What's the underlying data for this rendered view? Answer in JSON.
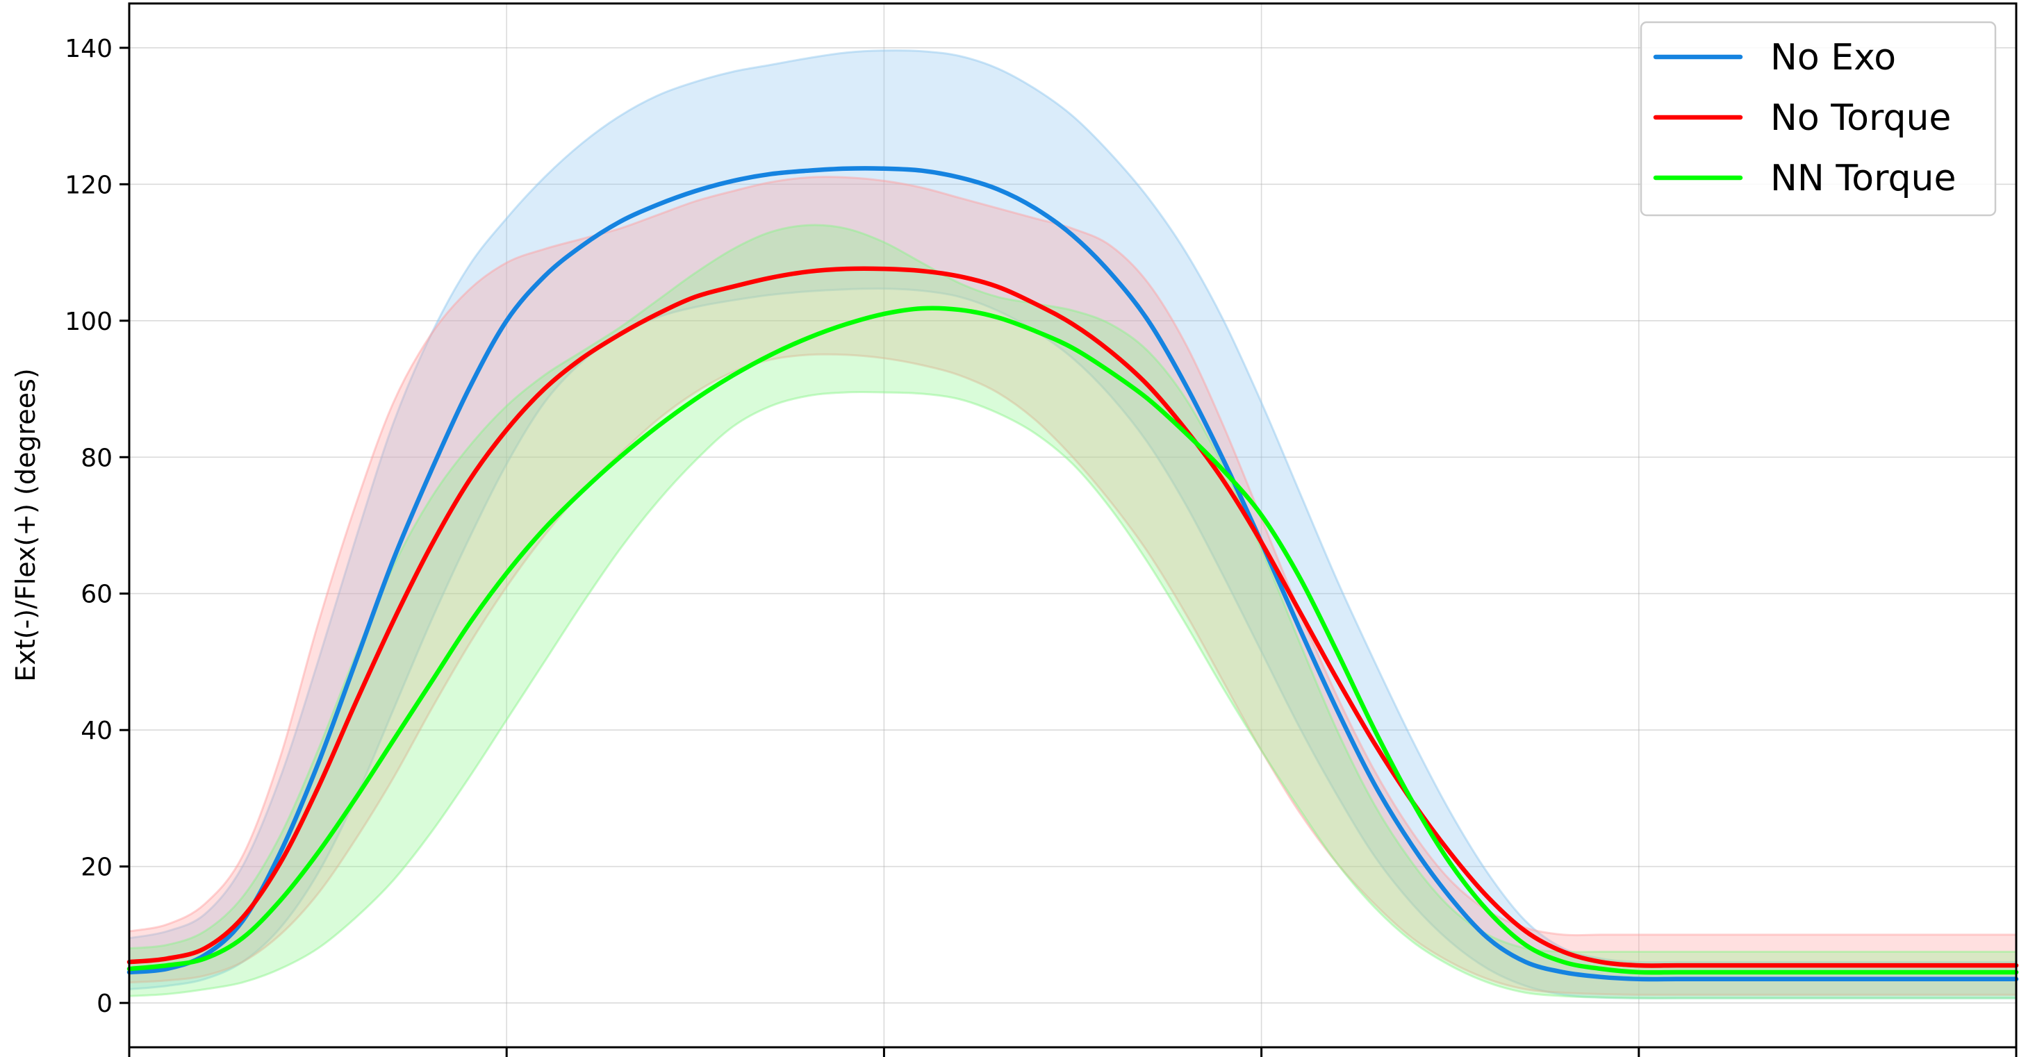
{
  "chart_data": {
    "type": "line",
    "title": "",
    "xlabel": "",
    "ylabel": "Ext(-)/Flex(+) (degrees)",
    "xlim": [
      0,
      100
    ],
    "ylim": [
      -6.5,
      146.5
    ],
    "yticks": [
      0,
      20,
      40,
      60,
      80,
      100,
      120,
      140
    ],
    "xticks": [
      0,
      20,
      40,
      60,
      80,
      100
    ],
    "grid": true,
    "legend_position": "top-right",
    "x": [
      0,
      2,
      4,
      6,
      8,
      10,
      12,
      14,
      16,
      18,
      20,
      22,
      24,
      26,
      28,
      30,
      32,
      34,
      36,
      38,
      40,
      42,
      44,
      46,
      48,
      50,
      52,
      54,
      56,
      58,
      60,
      62,
      64,
      66,
      68,
      70,
      72,
      74,
      76,
      78,
      80,
      82,
      84,
      86,
      88,
      90,
      92,
      94,
      96,
      98,
      100
    ],
    "series": [
      {
        "name": "No Exo",
        "color": "#1583e0",
        "band_color": "#8cc5ee",
        "mean": [
          4.5,
          5.0,
          7.0,
          12.0,
          22.0,
          35.0,
          50.0,
          65.0,
          78.0,
          90.0,
          100.0,
          106.5,
          111.0,
          114.5,
          117.0,
          119.0,
          120.5,
          121.5,
          122.0,
          122.3,
          122.3,
          122.0,
          121.0,
          119.3,
          116.5,
          112.5,
          107.0,
          100.0,
          90.5,
          79.5,
          67.5,
          55.0,
          43.0,
          32.0,
          23.0,
          15.5,
          9.5,
          6.0,
          4.5,
          3.8,
          3.5,
          3.5,
          3.5,
          3.5,
          3.5,
          3.5,
          3.5,
          3.5,
          3.5,
          3.5,
          3.5
        ],
        "upper": [
          9.5,
          10.5,
          13.0,
          20.0,
          33.0,
          50.0,
          68.0,
          85.0,
          98.0,
          108.0,
          115.0,
          121.0,
          126.0,
          130.0,
          133.0,
          135.0,
          136.5,
          137.5,
          138.5,
          139.3,
          139.6,
          139.5,
          138.8,
          137.0,
          134.0,
          130.0,
          124.5,
          118.0,
          110.0,
          100.0,
          88.0,
          75.0,
          62.0,
          50.0,
          38.5,
          28.0,
          19.0,
          12.0,
          8.0,
          6.5,
          6.0,
          6.0,
          6.0,
          6.0,
          6.0,
          6.0,
          6.0,
          6.0,
          6.0,
          6.0,
          6.0
        ],
        "lower": [
          2.0,
          2.5,
          3.5,
          6.0,
          11.0,
          19.0,
          30.0,
          43.0,
          56.0,
          68.0,
          79.0,
          88.0,
          94.0,
          98.0,
          100.5,
          102.0,
          103.0,
          103.8,
          104.3,
          104.6,
          104.7,
          104.4,
          103.5,
          101.5,
          98.5,
          94.5,
          89.0,
          82.0,
          73.0,
          62.5,
          51.5,
          40.5,
          30.5,
          21.5,
          14.5,
          9.0,
          5.0,
          2.5,
          1.2,
          0.8,
          0.7,
          0.7,
          0.7,
          0.7,
          0.7,
          0.7,
          0.7,
          0.7,
          0.7,
          0.7,
          0.7
        ]
      },
      {
        "name": "No Torque",
        "color": "#ff0000",
        "band_color": "#ff9e9e",
        "mean": [
          6.0,
          6.5,
          8.0,
          12.5,
          20.5,
          31.5,
          44.0,
          56.0,
          67.0,
          76.5,
          84.0,
          90.0,
          94.5,
          98.0,
          101.0,
          103.5,
          105.0,
          106.3,
          107.2,
          107.6,
          107.6,
          107.3,
          106.5,
          105.0,
          102.5,
          99.5,
          95.5,
          90.5,
          84.0,
          76.5,
          67.5,
          57.5,
          47.5,
          38.0,
          29.5,
          22.0,
          15.5,
          10.5,
          7.5,
          6.0,
          5.5,
          5.5,
          5.5,
          5.5,
          5.5,
          5.5,
          5.5,
          5.5,
          5.5,
          5.5,
          5.5
        ],
        "upper": [
          10.5,
          11.5,
          14.5,
          21.5,
          36.0,
          55.5,
          73.0,
          88.0,
          98.0,
          104.5,
          108.5,
          110.5,
          112.0,
          113.5,
          115.5,
          117.5,
          119.0,
          120.3,
          121.0,
          121.0,
          120.5,
          119.5,
          118.0,
          116.5,
          115.0,
          113.5,
          111.0,
          105.5,
          96.5,
          84.5,
          71.0,
          57.5,
          45.0,
          34.0,
          25.0,
          18.0,
          13.5,
          11.0,
          10.0,
          10.0,
          10.0,
          10.0,
          10.0,
          10.0,
          10.0,
          10.0,
          10.0,
          10.0,
          10.0,
          10.0,
          10.0
        ],
        "lower": [
          3.0,
          3.3,
          4.0,
          6.0,
          10.0,
          16.0,
          24.0,
          33.0,
          43.0,
          52.5,
          61.0,
          68.5,
          75.0,
          80.5,
          85.5,
          89.5,
          92.5,
          94.3,
          95.0,
          95.0,
          94.5,
          93.5,
          92.0,
          89.5,
          85.5,
          80.0,
          73.5,
          66.0,
          57.0,
          47.0,
          37.0,
          28.0,
          20.5,
          14.5,
          9.5,
          6.0,
          3.5,
          2.0,
          1.5,
          1.3,
          1.2,
          1.2,
          1.2,
          1.2,
          1.2,
          1.2,
          1.2,
          1.2,
          1.2,
          1.2,
          1.2
        ]
      },
      {
        "name": "NN Torque",
        "color": "#00ff00",
        "band_color": "#88f588",
        "mean": [
          5.0,
          5.5,
          6.5,
          9.5,
          15.0,
          22.0,
          30.0,
          38.5,
          47.0,
          55.5,
          63.0,
          69.5,
          75.0,
          80.0,
          84.5,
          88.5,
          92.0,
          95.0,
          97.5,
          99.5,
          101.0,
          101.8,
          101.6,
          100.5,
          98.5,
          96.0,
          92.5,
          88.5,
          83.5,
          78.0,
          71.5,
          62.5,
          51.5,
          40.0,
          29.5,
          20.5,
          13.5,
          8.5,
          6.0,
          5.0,
          4.5,
          4.5,
          4.5,
          4.5,
          4.5,
          4.5,
          4.5,
          4.5,
          4.5,
          4.5,
          4.5
        ],
        "upper": [
          8.0,
          8.5,
          10.5,
          15.5,
          24.5,
          37.0,
          51.0,
          64.0,
          74.0,
          81.5,
          87.5,
          92.0,
          95.5,
          99.0,
          103.0,
          107.0,
          110.5,
          113.0,
          114.0,
          113.5,
          111.5,
          108.5,
          105.5,
          103.5,
          102.5,
          101.5,
          99.5,
          95.5,
          88.5,
          78.5,
          66.5,
          53.0,
          40.0,
          29.0,
          20.5,
          14.0,
          10.0,
          8.0,
          7.5,
          7.5,
          7.5,
          7.5,
          7.5,
          7.5,
          7.5,
          7.5,
          7.5,
          7.5,
          7.5,
          7.5,
          7.5
        ],
        "lower": [
          1.0,
          1.3,
          2.0,
          3.0,
          5.0,
          8.0,
          12.5,
          18.0,
          25.0,
          33.0,
          41.5,
          50.0,
          58.5,
          66.5,
          73.5,
          79.5,
          84.5,
          87.5,
          89.0,
          89.5,
          89.5,
          89.3,
          88.5,
          86.5,
          83.5,
          79.0,
          72.5,
          64.5,
          55.5,
          46.0,
          37.0,
          28.5,
          20.5,
          14.0,
          9.0,
          5.5,
          3.0,
          1.5,
          1.0,
          0.8,
          0.7,
          0.7,
          0.7,
          0.7,
          0.7,
          0.7,
          0.7,
          0.7,
          0.7,
          0.7,
          0.7
        ]
      }
    ]
  }
}
